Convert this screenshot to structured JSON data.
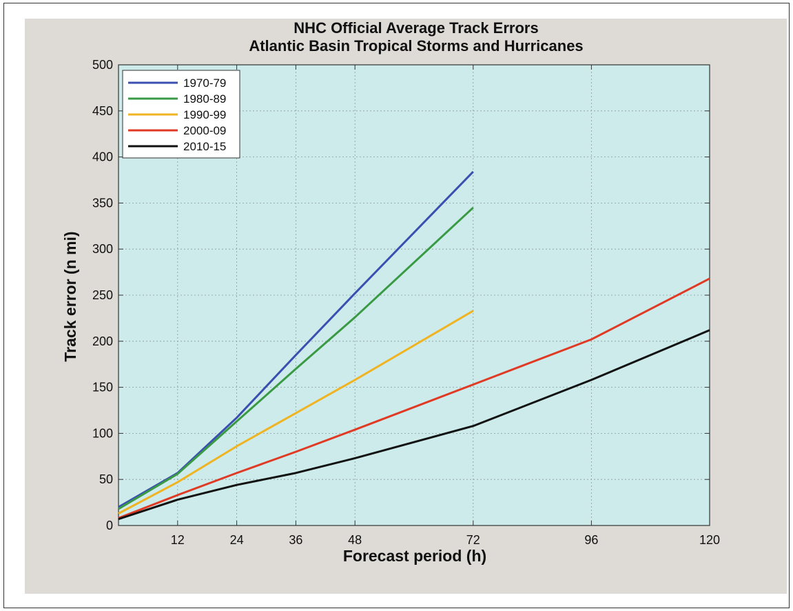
{
  "chart_data": {
    "type": "line",
    "title": "NHC Official Average Track Errors",
    "subtitle": "Atlantic Basin Tropical Storms and Hurricanes",
    "xlabel": "Forecast period (h)",
    "ylabel": "Track error (n mi)",
    "xlim": [
      0,
      120
    ],
    "ylim": [
      0,
      500
    ],
    "xticks": [
      12,
      24,
      36,
      48,
      72,
      96,
      120
    ],
    "xtick_labels": [
      "12",
      "24",
      "36",
      "48",
      "72",
      "96",
      "120"
    ],
    "yticks": [
      0,
      50,
      100,
      150,
      200,
      250,
      300,
      350,
      400,
      450,
      500
    ],
    "ytick_labels": [
      "0",
      "50",
      "100",
      "150",
      "200",
      "250",
      "300",
      "350",
      "400",
      "450",
      "500"
    ],
    "grid": true,
    "legend_position": "top-left",
    "series": [
      {
        "name": "1970-79",
        "color": "#3a4fb0",
        "x": [
          0,
          12,
          24,
          36,
          48,
          72
        ],
        "y": [
          20,
          57,
          117,
          185,
          252,
          384
        ]
      },
      {
        "name": "1980-89",
        "color": "#3a9a44",
        "x": [
          0,
          12,
          24,
          36,
          48,
          72
        ],
        "y": [
          18,
          56,
          113,
          170,
          226,
          345
        ]
      },
      {
        "name": "1990-99",
        "color": "#f0b322",
        "x": [
          0,
          12,
          24,
          36,
          48,
          72
        ],
        "y": [
          13,
          47,
          86,
          122,
          158,
          233
        ]
      },
      {
        "name": "2000-09",
        "color": "#e03a24",
        "x": [
          0,
          12,
          24,
          36,
          48,
          72,
          96,
          120
        ],
        "y": [
          8,
          33,
          57,
          80,
          104,
          153,
          202,
          268
        ]
      },
      {
        "name": "2010-15",
        "color": "#111111",
        "x": [
          0,
          12,
          24,
          36,
          48,
          72,
          96,
          120
        ],
        "y": [
          7,
          28,
          44,
          57,
          73,
          108,
          158,
          212
        ]
      }
    ]
  }
}
